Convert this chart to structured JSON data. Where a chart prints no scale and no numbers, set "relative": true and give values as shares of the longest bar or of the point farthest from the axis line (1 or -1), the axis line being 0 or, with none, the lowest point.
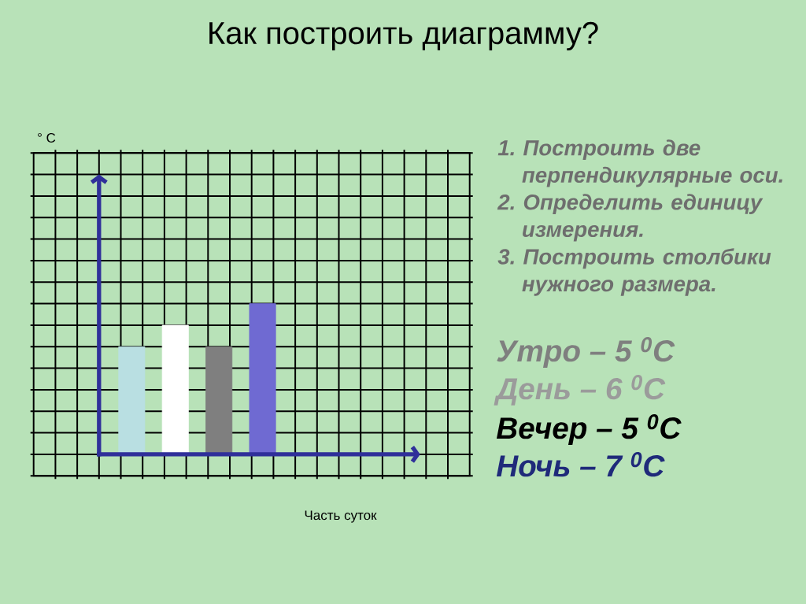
{
  "chart_data": {
    "type": "bar",
    "title": "Как построить диаграмму?",
    "xlabel": "Часть суток",
    "annotations": [
      "1. Построить две перпендикулярные оси.",
      "2. Определить единицу измерения.",
      "3. Построить столбики нужного размера.",
      "Утро – 5 $^{0}$C",
      "День – 6 $^{0}$C",
      "Вечер – 5 $^{0}$C",
      "Ночь – 7 $^{0}$C",
      "° C"
    ],
    "categories": [
      null,
      null,
      null,
      null
    ],
    "values": [
      0.714,
      0.857,
      0.714,
      1
    ],
    "colors": [
      "#b9dfe2",
      "#ffffff",
      "#7f7f7f",
      "#6f6ad2"
    ],
    "relative": true,
    "grid": true
  }
}
